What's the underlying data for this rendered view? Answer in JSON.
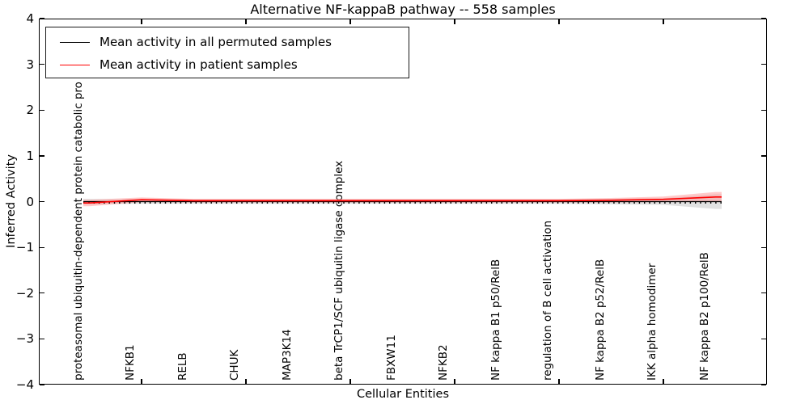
{
  "figure": {
    "title": "Alternative NF-kappaB pathway -- 558 samples",
    "xlabel": "Cellular Entities",
    "ylabel": "Inferred Activity"
  },
  "legend": {
    "items": [
      {
        "label": "Mean activity in all permuted samples",
        "color": "#000000"
      },
      {
        "label": "Mean activity in patient samples",
        "color": "#ff0000"
      }
    ]
  },
  "chart_data": {
    "type": "line",
    "title": "Alternative NF-kappaB pathway -- 558 samples",
    "xlabel": "Cellular Entities",
    "ylabel": "Inferred Activity",
    "ylim": [
      -4,
      4
    ],
    "ytick_labels": [
      "4",
      "3",
      "2",
      "1",
      "0",
      "−1",
      "−2",
      "−3",
      "−4"
    ],
    "grid": false,
    "legend_position": "upper left",
    "categories": [
      "proteasomal ubiquitin-dependent protein catabolic pro",
      "NFKB1",
      "RELB",
      "CHUK",
      "MAP3K14",
      "beta TrCP1/SCF ubiquitin ligase complex",
      "FBXW11",
      "NFKB2",
      "NF kappa B1 p50/RelB",
      "regulation of B cell activation",
      "NF kappa B2 p52/RelB",
      "IKK alpha homodimer",
      "NF kappa B2 p100/RelB"
    ],
    "series": [
      {
        "name": "Mean activity in all permuted samples",
        "color": "#000000",
        "values": [
          0.0,
          0.0,
          0.0,
          0.0,
          0.0,
          0.0,
          0.0,
          0.0,
          0.0,
          0.0,
          0.0,
          0.0,
          0.0
        ],
        "band_halfwidth": [
          0.06,
          0.05,
          0.05,
          0.05,
          0.05,
          0.05,
          0.05,
          0.05,
          0.05,
          0.05,
          0.06,
          0.07,
          0.16
        ],
        "band_color": "#c8c8c8"
      },
      {
        "name": "Mean activity in patient samples",
        "color": "#ff0000",
        "values": [
          -0.03,
          0.04,
          0.02,
          0.02,
          0.02,
          0.02,
          0.02,
          0.02,
          0.02,
          0.02,
          0.03,
          0.05,
          0.1
        ],
        "band_halfwidth": [
          0.07,
          0.05,
          0.04,
          0.04,
          0.04,
          0.04,
          0.04,
          0.04,
          0.04,
          0.04,
          0.05,
          0.06,
          0.11
        ],
        "band_color": "#ff9e9e"
      }
    ]
  }
}
